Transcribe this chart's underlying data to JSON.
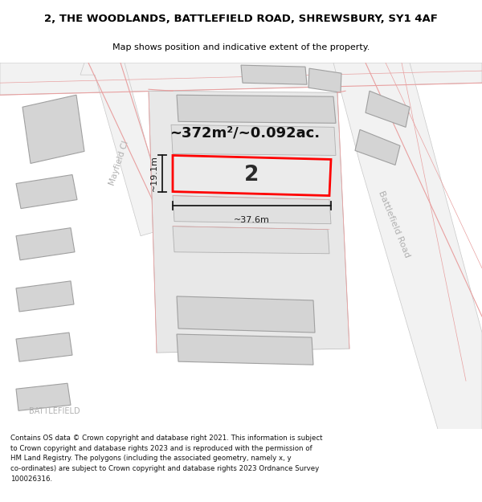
{
  "title": "2, THE WOODLANDS, BATTLEFIELD ROAD, SHREWSBURY, SY1 4AF",
  "subtitle": "Map shows position and indicative extent of the property.",
  "footer_line1": "Contains OS data © Crown copyright and database right 2021. This information is subject",
  "footer_line2": "to Crown copyright and database rights 2023 and is reproduced with the permission of",
  "footer_line3": "HM Land Registry. The polygons (including the associated geometry, namely x, y",
  "footer_line4": "co-ordinates) are subject to Crown copyright and database rights 2023 Ordnance Survey",
  "footer_line5": "100026316.",
  "area_label": "~372m²/~0.092ac.",
  "width_label": "~37.6m",
  "height_label": "~19.1m",
  "plot_number": "2",
  "background_color": "#ffffff",
  "building_fill": "#d4d4d4",
  "building_edge": "#a0a0a0",
  "plot_fill": "#e0e0e0",
  "plot_edge": "#ff0000",
  "road_outline_color": "#e8a0a0",
  "dim_color": "#1a1a1a",
  "road_label_color": "#b0b0b0",
  "battle_label": "Battlefield Road",
  "mayfield_label": "Mayfield Cl",
  "battlefield_bottom": "BATTLEFIELD"
}
